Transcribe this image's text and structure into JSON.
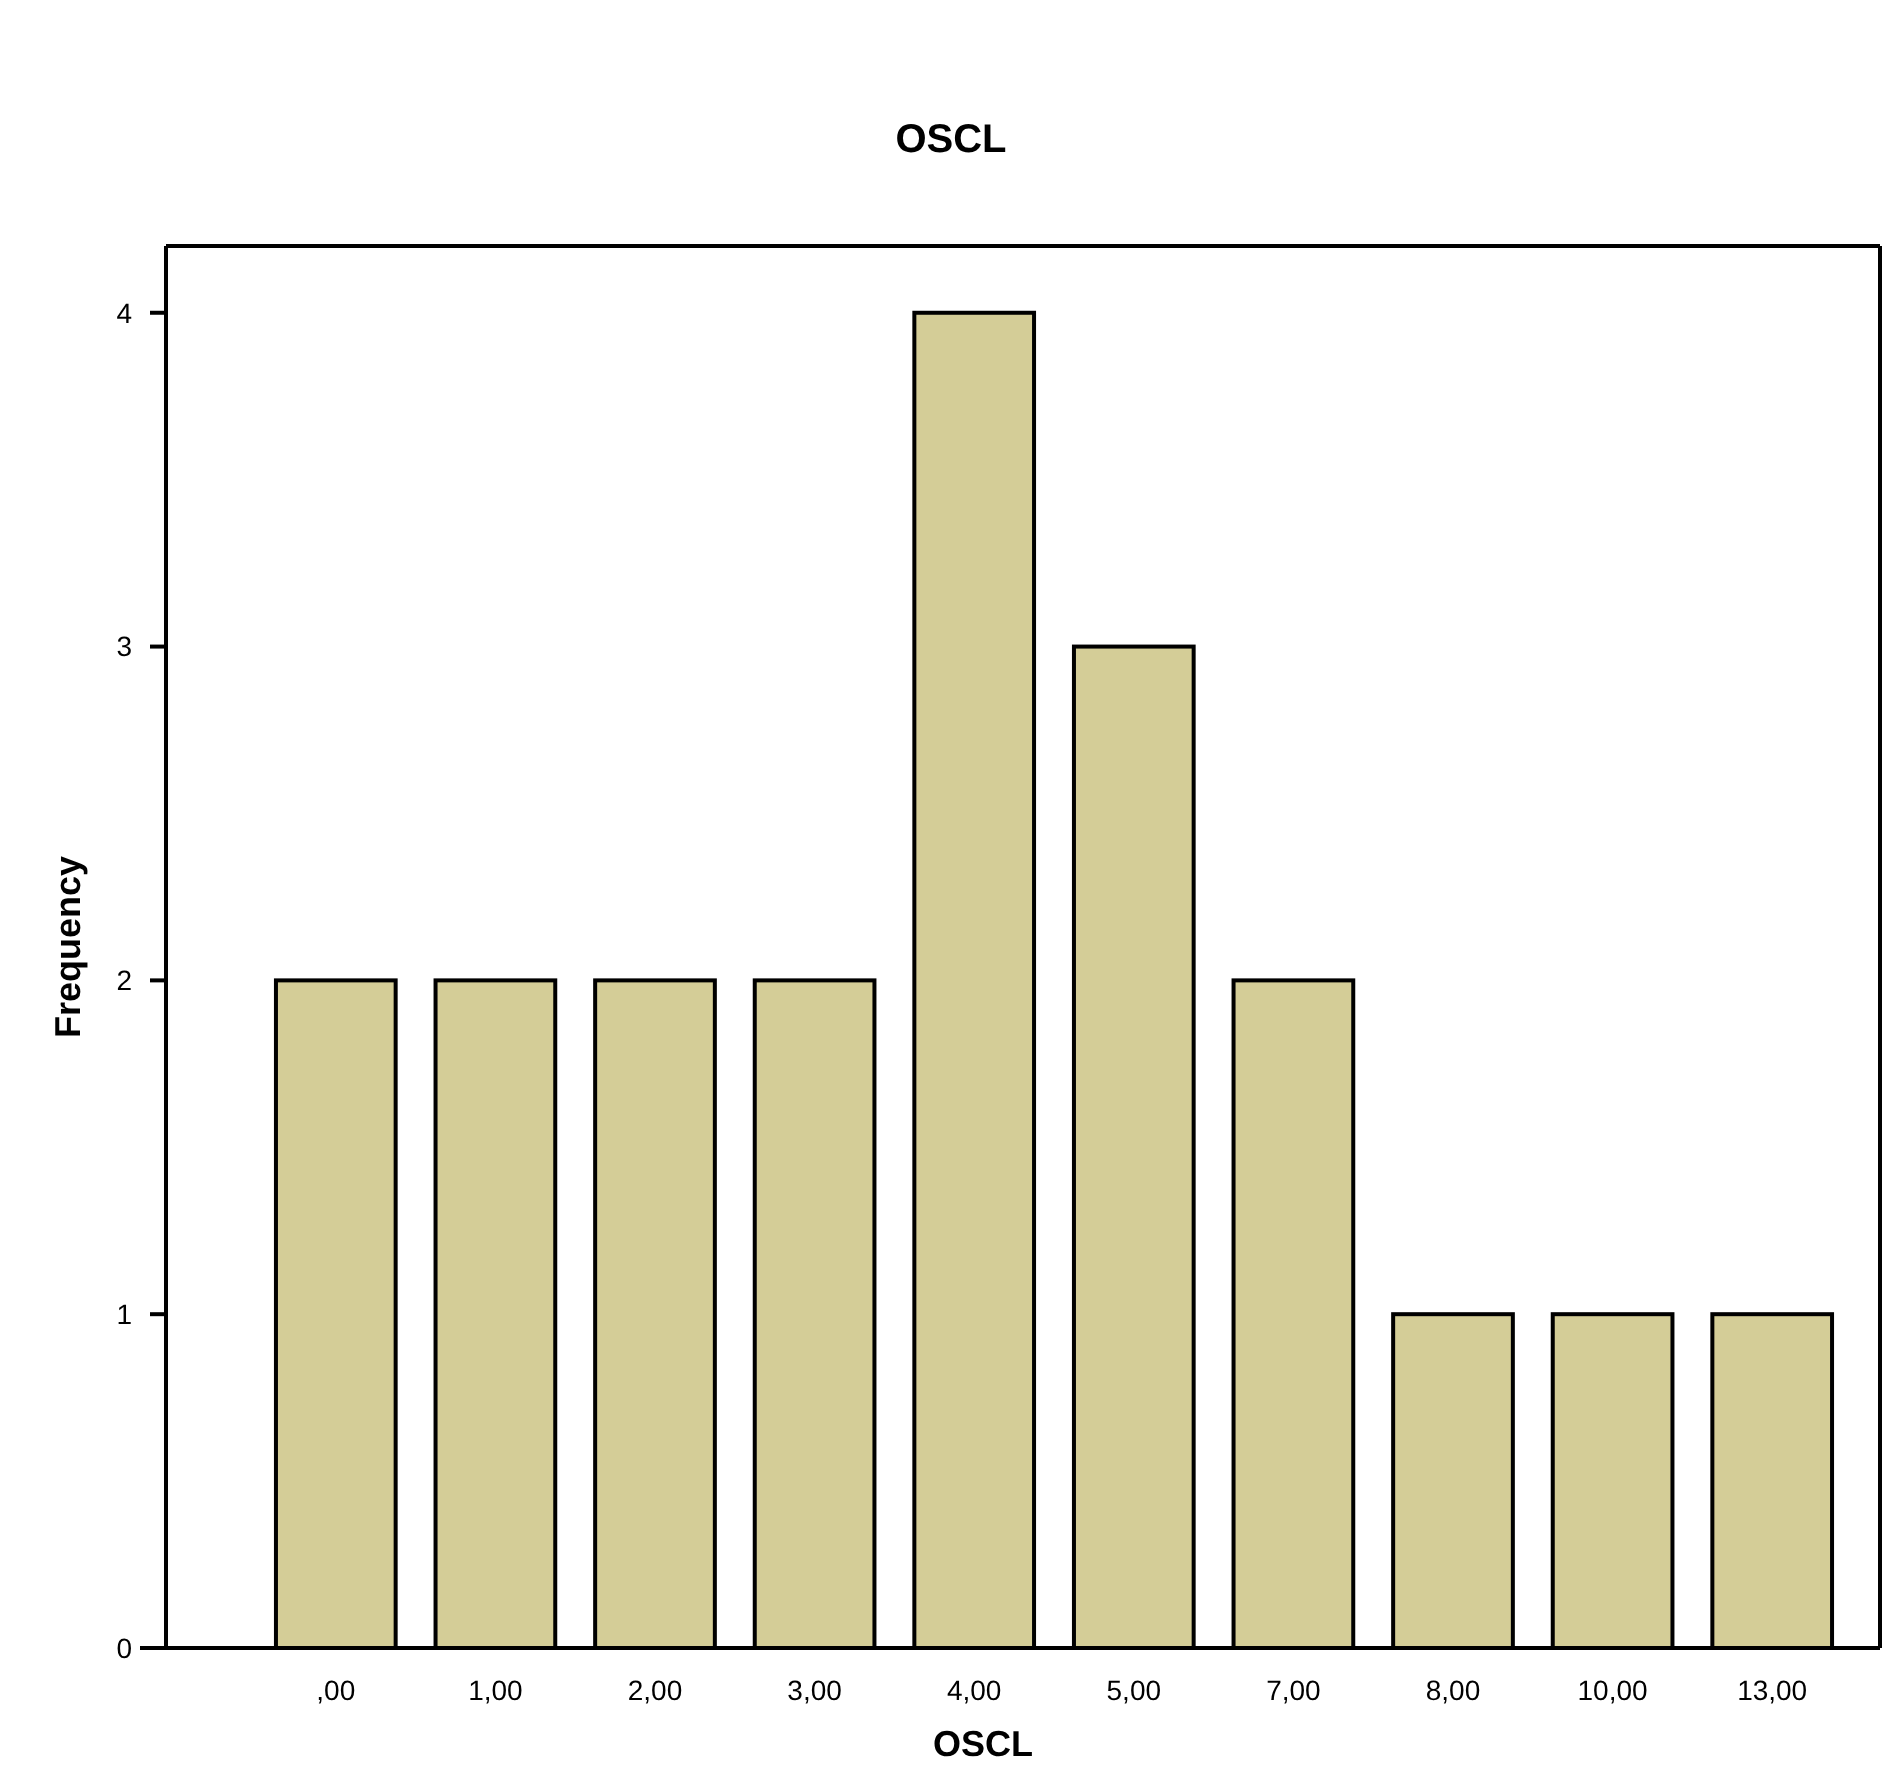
{
  "chart_data": {
    "type": "bar",
    "title": "OSCL",
    "xlabel": "OSCL",
    "ylabel": "Frequency",
    "categories": [
      ",00",
      "1,00",
      "2,00",
      "3,00",
      "4,00",
      "5,00",
      "7,00",
      "8,00",
      "10,00",
      "13,00"
    ],
    "values": [
      2,
      2,
      2,
      2,
      4,
      3,
      2,
      1,
      1,
      1
    ],
    "color": "#d4cd97",
    "ylim": [
      0,
      4.2
    ],
    "yticks": [
      0,
      1,
      2,
      3,
      4
    ],
    "grid": false
  }
}
